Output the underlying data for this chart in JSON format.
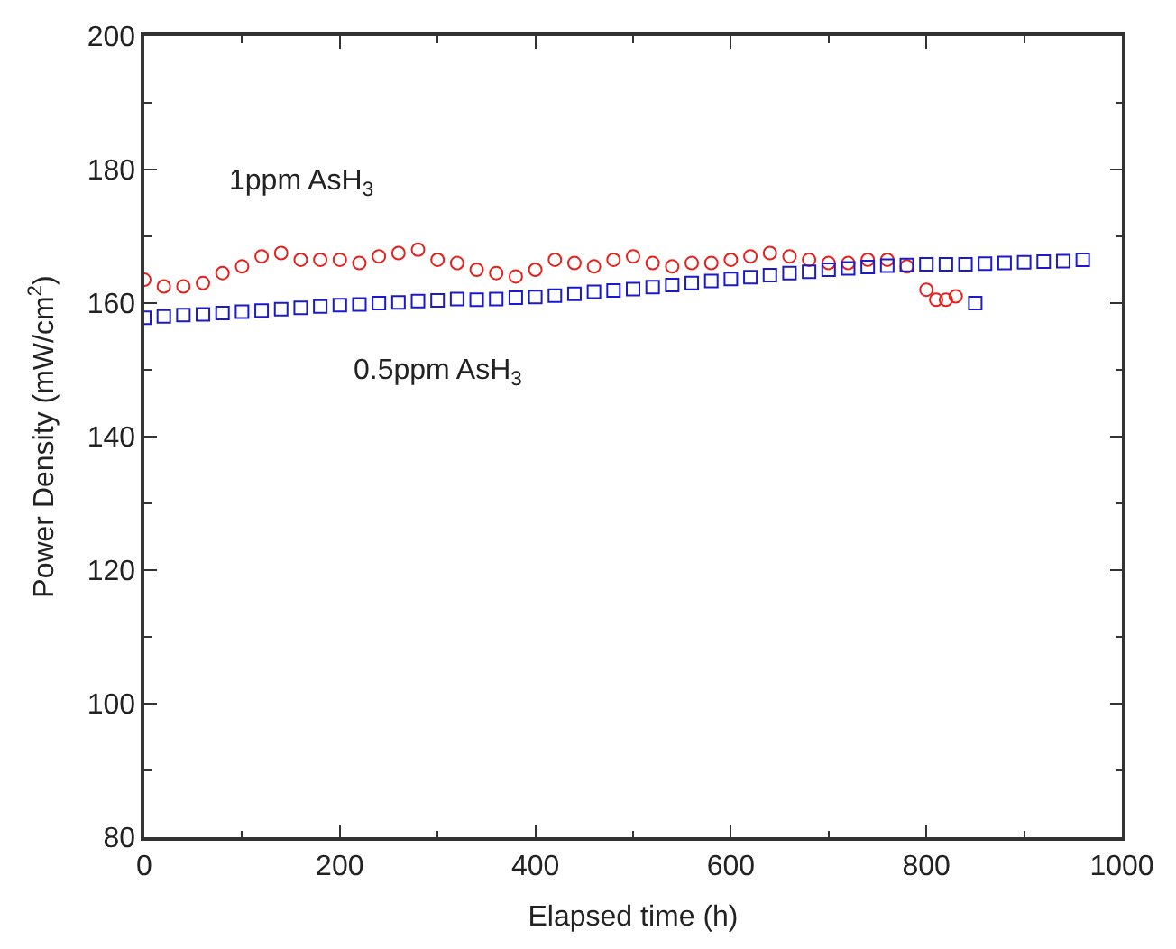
{
  "chart_data": {
    "type": "scatter",
    "xlabel": "Elapsed time (h)",
    "ylabel": "Power Density (mW/cm$^{2}$)",
    "xlim": [
      0,
      1000
    ],
    "xticks": [
      0,
      200,
      400,
      600,
      800,
      1000
    ],
    "ylim": [
      80,
      200
    ],
    "yticks": [
      80,
      100,
      120,
      140,
      160,
      180,
      200
    ],
    "grid": false,
    "legend": false,
    "series": [
      {
        "name": "1ppm AsH$_{3}$",
        "color": "#e8201c",
        "marker": "circle",
        "x": [
          0,
          20,
          40,
          60,
          80,
          100,
          120,
          140,
          160,
          180,
          200,
          220,
          240,
          260,
          280,
          300,
          320,
          340,
          360,
          380,
          400,
          420,
          440,
          460,
          480,
          500,
          520,
          540,
          560,
          580,
          600,
          620,
          640,
          660,
          680,
          700,
          720,
          740,
          760,
          780,
          800,
          810,
          820,
          830
        ],
        "values": [
          163.5,
          162.5,
          162.5,
          163,
          164.5,
          165.5,
          167,
          167.5,
          166.5,
          166.5,
          166.5,
          166,
          167,
          167.5,
          168,
          166.5,
          166,
          165,
          164.5,
          164,
          165,
          166.5,
          166,
          165.5,
          166.5,
          167,
          166,
          165.5,
          166,
          166,
          166.5,
          167,
          167.5,
          167,
          166.5,
          166,
          166,
          166.5,
          166.5,
          165.5,
          162,
          160.5,
          160.5,
          161
        ]
      },
      {
        "name": "0.5ppm AsH$_{3}$",
        "color": "#1a1acc",
        "marker": "square",
        "x": [
          0,
          20,
          40,
          60,
          80,
          100,
          120,
          140,
          160,
          180,
          200,
          220,
          240,
          260,
          280,
          300,
          320,
          340,
          360,
          380,
          400,
          420,
          440,
          460,
          480,
          500,
          520,
          540,
          560,
          580,
          600,
          620,
          640,
          660,
          680,
          700,
          720,
          740,
          760,
          780,
          800,
          820,
          840,
          850,
          860,
          880,
          900,
          920,
          940,
          960
        ],
        "values": [
          157.8,
          158,
          158.2,
          158.3,
          158.5,
          158.7,
          158.9,
          159.1,
          159.3,
          159.5,
          159.7,
          159.8,
          160,
          160.1,
          160.3,
          160.4,
          160.6,
          160.5,
          160.6,
          160.8,
          160.9,
          161.1,
          161.4,
          161.7,
          161.9,
          162.1,
          162.4,
          162.7,
          163,
          163.3,
          163.6,
          163.9,
          164.2,
          164.5,
          164.7,
          165,
          165.2,
          165.4,
          165.6,
          165.7,
          165.8,
          165.8,
          165.8,
          160,
          165.9,
          166,
          166.1,
          166.2,
          166.3,
          166.5
        ]
      }
    ]
  }
}
